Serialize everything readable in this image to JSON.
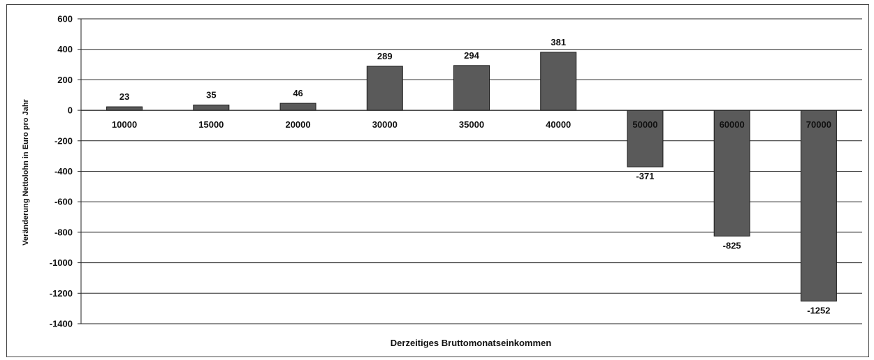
{
  "chart_data": {
    "type": "bar",
    "title": "",
    "xlabel": "Derzeitiges Bruttomonatseinkommen",
    "ylabel": "Veränderung Nettolohn in Euro pro Jahr",
    "categories": [
      "10000",
      "15000",
      "20000",
      "30000",
      "35000",
      "40000",
      "50000",
      "60000",
      "70000"
    ],
    "values": [
      23,
      35,
      46,
      289,
      294,
      381,
      -371,
      -825,
      -1252
    ],
    "ylim": [
      -1400,
      600
    ],
    "yticks": [
      600,
      400,
      200,
      0,
      -200,
      -400,
      -600,
      -800,
      -1000,
      -1200,
      -1400
    ],
    "grid": true,
    "legend": "none",
    "bar_color": "#5a5a5a"
  }
}
